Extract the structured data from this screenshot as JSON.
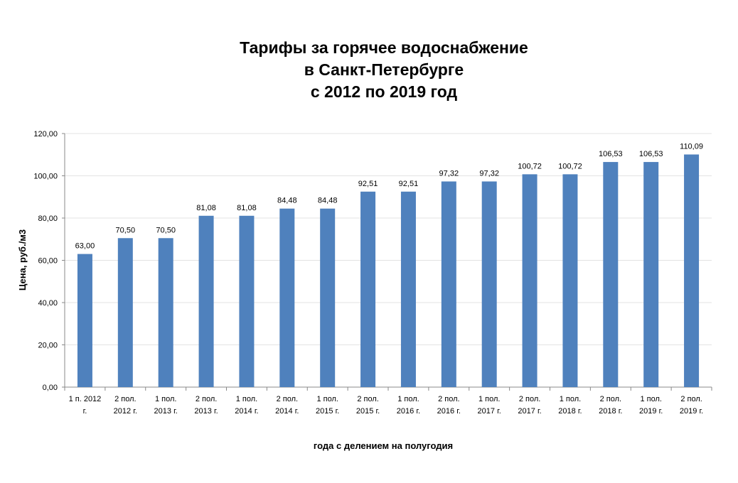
{
  "chart_data": {
    "type": "bar",
    "title_lines": [
      "Тарифы за горячее водоснабжение",
      "в Санкт-Петербурге",
      "с 2012 по 2019 год"
    ],
    "xlabel": "года с делением на полугодия",
    "ylabel": "Цена, руб./м3",
    "ylim": [
      0,
      120
    ],
    "yticks": [
      0,
      20,
      40,
      60,
      80,
      100,
      120
    ],
    "ytick_labels": [
      "0,00",
      "20,00",
      "40,00",
      "60,00",
      "80,00",
      "100,00",
      "120,00"
    ],
    "grid": true,
    "series_color": "#4F81BD",
    "categories": [
      [
        "1 п. 2012",
        "г."
      ],
      [
        "2 пол.",
        "2012 г."
      ],
      [
        "1 пол.",
        "2013 г."
      ],
      [
        "2 пол.",
        "2013 г."
      ],
      [
        "1 пол.",
        "2014 г."
      ],
      [
        "2 пол.",
        "2014 г."
      ],
      [
        "1 пол.",
        "2015 г."
      ],
      [
        "2 пол.",
        "2015 г."
      ],
      [
        "1 пол.",
        "2016 г."
      ],
      [
        "2 пол.",
        "2016 г."
      ],
      [
        "1 пол.",
        "2017 г."
      ],
      [
        "2 пол.",
        "2017 г."
      ],
      [
        "1 пол.",
        "2018 г."
      ],
      [
        "2 пол.",
        "2018 г."
      ],
      [
        "1 пол.",
        "2019 г."
      ],
      [
        "2 пол.",
        "2019 г."
      ]
    ],
    "values": [
      63.0,
      70.5,
      70.5,
      81.08,
      81.08,
      84.48,
      84.48,
      92.51,
      92.51,
      97.32,
      97.32,
      100.72,
      100.72,
      106.53,
      106.53,
      110.09
    ],
    "value_labels": [
      "63,00",
      "70,50",
      "70,50",
      "81,08",
      "81,08",
      "84,48",
      "84,48",
      "92,51",
      "92,51",
      "97,32",
      "97,32",
      "100,72",
      "100,72",
      "106,53",
      "106,53",
      "110,09"
    ]
  }
}
